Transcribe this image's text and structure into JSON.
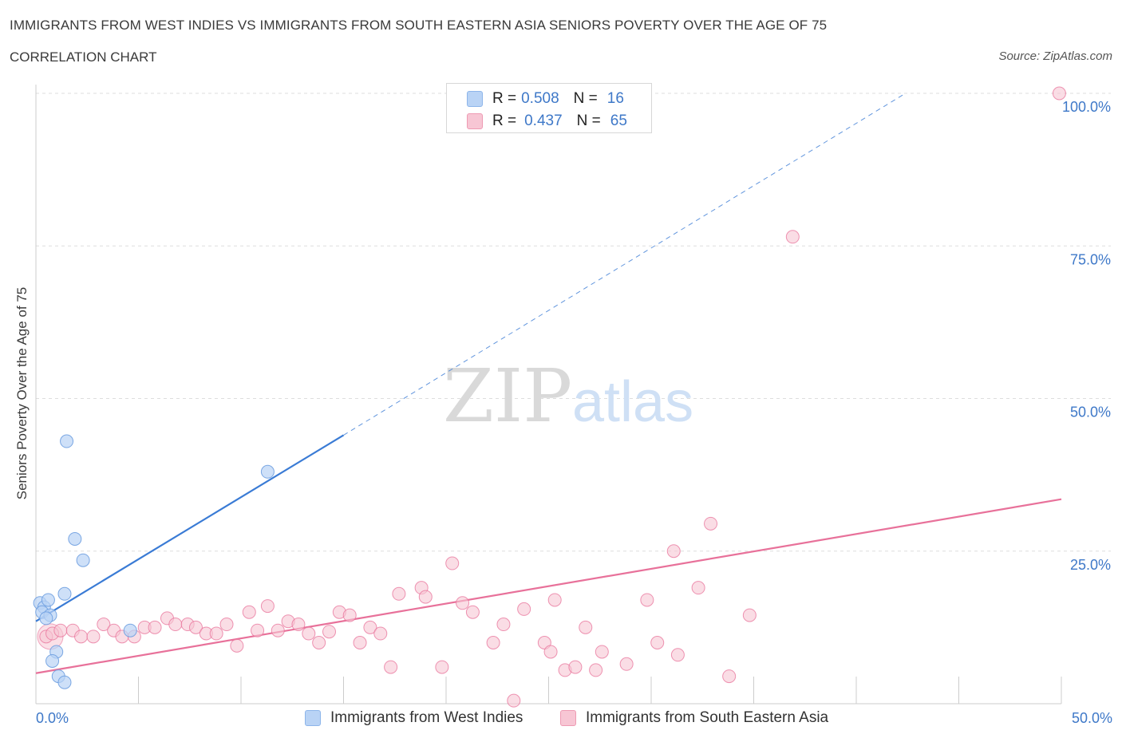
{
  "header": {
    "title": "IMMIGRANTS FROM WEST INDIES VS IMMIGRANTS FROM SOUTH EASTERN ASIA SENIORS POVERTY OVER THE AGE OF 75",
    "subtitle": "CORRELATION CHART",
    "source": "Source: ZipAtlas.com"
  },
  "watermark": "ZIPatlas",
  "legend": {
    "r_label": "R =",
    "n_label": "N =",
    "rows": [
      {
        "r": "0.508",
        "n": "16"
      },
      {
        "r": "0.437",
        "n": "65"
      }
    ]
  },
  "colors": {
    "blue": "#3a7bd5",
    "blue_fill": "#b9d3f5",
    "pink": "#e8719a",
    "pink_fill": "#f7c6d4",
    "grid": "#dddddd",
    "tick_text": "#3e78c8"
  },
  "chart_data": {
    "type": "scatter",
    "title": "IMMIGRANTS FROM WEST INDIES VS IMMIGRANTS FROM SOUTH EASTERN ASIA SENIORS POVERTY OVER THE AGE OF 75",
    "xlabel": "",
    "ylabel": "Seniors Poverty Over the Age of 75",
    "xlim": [
      0,
      50
    ],
    "ylim": [
      0,
      100
    ],
    "x_tick_labels": [
      "0.0%",
      "50.0%"
    ],
    "y_ticks": [
      25,
      50,
      75,
      100
    ],
    "y_tick_labels": [
      "25.0%",
      "50.0%",
      "75.0%",
      "100.0%"
    ],
    "grid": true,
    "legend_position": "bottom",
    "series": [
      {
        "name": "Immigrants from West Indies",
        "color": "blue",
        "r": 0.508,
        "n": 16,
        "points": [
          [
            0.2,
            16.5
          ],
          [
            0.4,
            15.8
          ],
          [
            0.6,
            17.0
          ],
          [
            0.3,
            15.0
          ],
          [
            0.7,
            14.5
          ],
          [
            0.5,
            14.0
          ],
          [
            1.5,
            43.0
          ],
          [
            1.9,
            27.0
          ],
          [
            2.3,
            23.5
          ],
          [
            1.4,
            18.0
          ],
          [
            1.0,
            8.5
          ],
          [
            0.8,
            7.0
          ],
          [
            1.1,
            4.5
          ],
          [
            1.4,
            3.5
          ],
          [
            11.3,
            38.0
          ],
          [
            4.6,
            12.0
          ]
        ],
        "trend": {
          "x0": 0.0,
          "y0": 13.5,
          "x1": 15.0,
          "y1": 44.0,
          "dash_to_x": 42.4,
          "dash_to_y": 100.0
        }
      },
      {
        "name": "Immigrants from South Eastern Asia",
        "color": "pink",
        "r": 0.437,
        "n": 65,
        "points": [
          [
            0.5,
            11.0
          ],
          [
            0.8,
            11.5
          ],
          [
            1.2,
            12.0
          ],
          [
            1.8,
            12.0
          ],
          [
            2.2,
            11.0
          ],
          [
            2.8,
            11.0
          ],
          [
            3.3,
            13.0
          ],
          [
            3.8,
            12.0
          ],
          [
            4.2,
            11.0
          ],
          [
            4.8,
            11.0
          ],
          [
            5.3,
            12.5
          ],
          [
            5.8,
            12.5
          ],
          [
            6.4,
            14.0
          ],
          [
            6.8,
            13.0
          ],
          [
            7.4,
            13.0
          ],
          [
            7.8,
            12.5
          ],
          [
            8.3,
            11.5
          ],
          [
            8.8,
            11.5
          ],
          [
            9.3,
            13.0
          ],
          [
            9.8,
            9.5
          ],
          [
            10.4,
            15.0
          ],
          [
            10.8,
            12.0
          ],
          [
            11.3,
            16.0
          ],
          [
            11.8,
            12.0
          ],
          [
            12.3,
            13.5
          ],
          [
            12.8,
            13.0
          ],
          [
            13.3,
            11.5
          ],
          [
            13.8,
            10.0
          ],
          [
            14.3,
            11.8
          ],
          [
            14.8,
            15.0
          ],
          [
            15.3,
            14.5
          ],
          [
            15.8,
            10.0
          ],
          [
            16.3,
            12.5
          ],
          [
            16.8,
            11.5
          ],
          [
            17.3,
            6.0
          ],
          [
            17.7,
            18.0
          ],
          [
            18.8,
            19.0
          ],
          [
            19.0,
            17.5
          ],
          [
            19.8,
            6.0
          ],
          [
            20.3,
            23.0
          ],
          [
            20.8,
            16.5
          ],
          [
            21.3,
            15.0
          ],
          [
            22.3,
            10.0
          ],
          [
            22.8,
            13.0
          ],
          [
            23.3,
            0.5
          ],
          [
            23.8,
            15.5
          ],
          [
            24.8,
            10.0
          ],
          [
            25.1,
            8.5
          ],
          [
            25.3,
            17.0
          ],
          [
            25.8,
            5.5
          ],
          [
            26.8,
            12.5
          ],
          [
            26.3,
            6.0
          ],
          [
            27.3,
            5.5
          ],
          [
            27.6,
            8.5
          ],
          [
            28.8,
            6.5
          ],
          [
            29.8,
            17.0
          ],
          [
            30.3,
            10.0
          ],
          [
            31.3,
            8.0
          ],
          [
            31.1,
            25.0
          ],
          [
            32.3,
            19.0
          ],
          [
            32.9,
            29.5
          ],
          [
            33.8,
            4.5
          ],
          [
            34.8,
            14.5
          ],
          [
            36.9,
            76.5
          ],
          [
            49.9,
            100.0
          ]
        ],
        "trend": {
          "x0": 0.0,
          "y0": 5.0,
          "x1": 50.0,
          "y1": 33.5
        }
      }
    ]
  }
}
